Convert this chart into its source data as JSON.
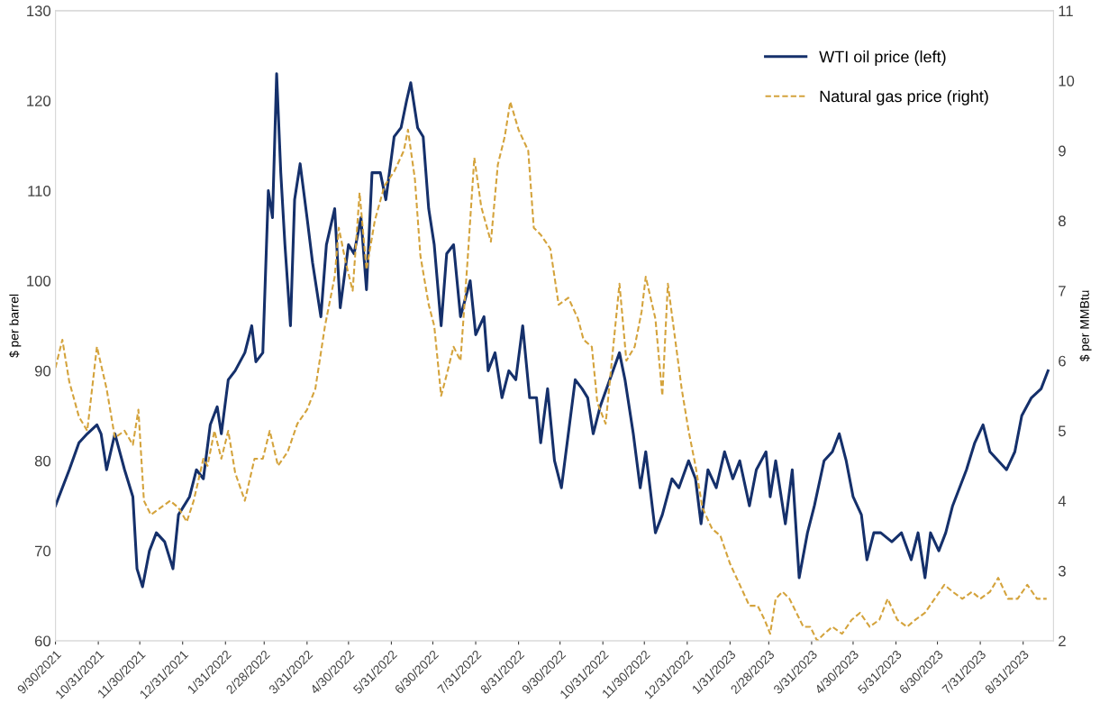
{
  "chart_data": {
    "type": "line",
    "ylabel": "$ per barrel",
    "y2label": "$ per MMBtu",
    "xlim": [
      "2021-09-30",
      "2023-09-22"
    ],
    "xticks": [
      {
        "value": "2021-09-30",
        "label": "9/30/2021"
      },
      {
        "value": "2021-10-31",
        "label": "10/31/2021"
      },
      {
        "value": "2021-11-30",
        "label": "11/30/2021"
      },
      {
        "value": "2021-12-31",
        "label": "12/31/2021"
      },
      {
        "value": "2022-01-31",
        "label": "1/31/2022"
      },
      {
        "value": "2022-02-28",
        "label": "2/28/2022"
      },
      {
        "value": "2022-03-31",
        "label": "3/31/2022"
      },
      {
        "value": "2022-04-30",
        "label": "4/30/2022"
      },
      {
        "value": "2022-05-31",
        "label": "5/31/2022"
      },
      {
        "value": "2022-06-30",
        "label": "6/30/2022"
      },
      {
        "value": "2022-07-31",
        "label": "7/31/2022"
      },
      {
        "value": "2022-08-31",
        "label": "8/31/2022"
      },
      {
        "value": "2022-09-30",
        "label": "9/30/2022"
      },
      {
        "value": "2022-10-31",
        "label": "10/31/2022"
      },
      {
        "value": "2022-11-30",
        "label": "11/30/2022"
      },
      {
        "value": "2022-12-31",
        "label": "12/31/2022"
      },
      {
        "value": "2023-01-31",
        "label": "1/31/2023"
      },
      {
        "value": "2023-02-28",
        "label": "2/28/2023"
      },
      {
        "value": "2023-03-31",
        "label": "3/31/2023"
      },
      {
        "value": "2023-04-30",
        "label": "4/30/2023"
      },
      {
        "value": "2023-05-31",
        "label": "5/31/2023"
      },
      {
        "value": "2023-06-30",
        "label": "6/30/2023"
      },
      {
        "value": "2023-07-31",
        "label": "7/31/2023"
      },
      {
        "value": "2023-08-31",
        "label": "8/31/2023"
      }
    ],
    "ylim": [
      60,
      130
    ],
    "yticks": [
      60,
      70,
      80,
      90,
      100,
      110,
      120,
      130
    ],
    "y2lim": [
      2,
      11
    ],
    "y2ticks": [
      2,
      3,
      4,
      5,
      6,
      7,
      8,
      9,
      10,
      11
    ],
    "grid": false,
    "legend": "top right",
    "series": [
      {
        "name": "WTI oil price (left)",
        "color": "#15306b",
        "line_style": "solid",
        "x": [
          "2021-09-30",
          "2021-10-10",
          "2021-10-17",
          "2021-10-23",
          "2021-10-30",
          "2021-11-02",
          "2021-11-06",
          "2021-11-12",
          "2021-11-19",
          "2021-11-25",
          "2021-11-28",
          "2021-12-02",
          "2021-12-07",
          "2021-12-12",
          "2021-12-18",
          "2021-12-24",
          "2021-12-28",
          "2022-01-05",
          "2022-01-10",
          "2022-01-15",
          "2022-01-20",
          "2022-01-25",
          "2022-01-28",
          "2022-02-02",
          "2022-02-07",
          "2022-02-14",
          "2022-02-19",
          "2022-02-22",
          "2022-02-27",
          "2022-03-03",
          "2022-03-06",
          "2022-03-09",
          "2022-03-12",
          "2022-03-15",
          "2022-03-19",
          "2022-03-22",
          "2022-03-26",
          "2022-03-31",
          "2022-04-04",
          "2022-04-10",
          "2022-04-14",
          "2022-04-20",
          "2022-04-24",
          "2022-04-30",
          "2022-05-04",
          "2022-05-09",
          "2022-05-13",
          "2022-05-17",
          "2022-05-23",
          "2022-05-27",
          "2022-06-02",
          "2022-06-07",
          "2022-06-11",
          "2022-06-14",
          "2022-06-19",
          "2022-06-23",
          "2022-06-27",
          "2022-07-01",
          "2022-07-06",
          "2022-07-10",
          "2022-07-15",
          "2022-07-20",
          "2022-07-27",
          "2022-07-31",
          "2022-08-06",
          "2022-08-09",
          "2022-08-14",
          "2022-08-19",
          "2022-08-24",
          "2022-08-29",
          "2022-09-03",
          "2022-09-08",
          "2022-09-13",
          "2022-09-16",
          "2022-09-21",
          "2022-09-26",
          "2022-10-01",
          "2022-10-06",
          "2022-10-11",
          "2022-10-16",
          "2022-10-20",
          "2022-10-24",
          "2022-10-29",
          "2022-11-05",
          "2022-11-12",
          "2022-11-16",
          "2022-11-22",
          "2022-11-27",
          "2022-12-01",
          "2022-12-08",
          "2022-12-13",
          "2022-12-20",
          "2022-12-25",
          "2023-01-01",
          "2023-01-06",
          "2023-01-10",
          "2023-01-15",
          "2023-01-21",
          "2023-01-27",
          "2023-02-02",
          "2023-02-07",
          "2023-02-14",
          "2023-02-19",
          "2023-02-26",
          "2023-03-01",
          "2023-03-05",
          "2023-03-12",
          "2023-03-17",
          "2023-03-22",
          "2023-03-28",
          "2023-04-02",
          "2023-04-09",
          "2023-04-15",
          "2023-04-20",
          "2023-04-25",
          "2023-04-30",
          "2023-05-06",
          "2023-05-10",
          "2023-05-15",
          "2023-05-20",
          "2023-05-28",
          "2023-06-04",
          "2023-06-11",
          "2023-06-16",
          "2023-06-21",
          "2023-06-25",
          "2023-07-01",
          "2023-07-06",
          "2023-07-11",
          "2023-07-16",
          "2023-07-21",
          "2023-07-27",
          "2023-08-02",
          "2023-08-07",
          "2023-08-13",
          "2023-08-19",
          "2023-08-25",
          "2023-08-30",
          "2023-09-06",
          "2023-09-13",
          "2023-09-18"
        ],
        "values": [
          75,
          79,
          82,
          83,
          84,
          83,
          79,
          83,
          79,
          76,
          68,
          66,
          70,
          72,
          71,
          68,
          74,
          76,
          79,
          78,
          84,
          86,
          83,
          89,
          90,
          92,
          95,
          91,
          92,
          110,
          107,
          123,
          112,
          104,
          95,
          109,
          113,
          107,
          102,
          96,
          104,
          108,
          97,
          104,
          103,
          107,
          99,
          112,
          112,
          109,
          116,
          117,
          120,
          122,
          117,
          116,
          108,
          104,
          95,
          103,
          104,
          96,
          100,
          94,
          96,
          90,
          92,
          87,
          90,
          89,
          95,
          87,
          87,
          82,
          88,
          80,
          77,
          83,
          89,
          88,
          87,
          83,
          86,
          89,
          92,
          89,
          83,
          77,
          81,
          72,
          74,
          78,
          77,
          80,
          78,
          73,
          79,
          77,
          81,
          78,
          80,
          75,
          79,
          81,
          76,
          80,
          73,
          79,
          67,
          72,
          75,
          80,
          81,
          83,
          80,
          76,
          74,
          69,
          72,
          72,
          71,
          72,
          69,
          72,
          67,
          72,
          70,
          72,
          75,
          77,
          79,
          82,
          84,
          81,
          80,
          79,
          81,
          85,
          87,
          88,
          90
        ]
      },
      {
        "name": "Natural gas price (right)",
        "color": "#d4a33c",
        "line_style": "dashed",
        "axis": "y2",
        "x": [
          "2021-09-30",
          "2021-10-05",
          "2021-10-10",
          "2021-10-17",
          "2021-10-23",
          "2021-10-30",
          "2021-11-06",
          "2021-11-12",
          "2021-11-19",
          "2021-11-25",
          "2021-11-29",
          "2021-12-03",
          "2021-12-08",
          "2021-12-15",
          "2021-12-22",
          "2021-12-28",
          "2022-01-03",
          "2022-01-08",
          "2022-01-15",
          "2022-01-18",
          "2022-01-23",
          "2022-01-28",
          "2022-02-02",
          "2022-02-07",
          "2022-02-14",
          "2022-02-21",
          "2022-02-27",
          "2022-03-04",
          "2022-03-10",
          "2022-03-17",
          "2022-03-24",
          "2022-03-31",
          "2022-04-06",
          "2022-04-13",
          "2022-04-20",
          "2022-04-23",
          "2022-04-28",
          "2022-05-03",
          "2022-05-08",
          "2022-05-13",
          "2022-05-19",
          "2022-05-26",
          "2022-06-02",
          "2022-06-09",
          "2022-06-12",
          "2022-06-17",
          "2022-06-21",
          "2022-06-27",
          "2022-07-01",
          "2022-07-06",
          "2022-07-10",
          "2022-07-15",
          "2022-07-20",
          "2022-07-25",
          "2022-07-30",
          "2022-08-04",
          "2022-08-11",
          "2022-08-16",
          "2022-08-21",
          "2022-08-25",
          "2022-08-31",
          "2022-09-07",
          "2022-09-11",
          "2022-09-16",
          "2022-09-23",
          "2022-09-29",
          "2022-10-06",
          "2022-10-13",
          "2022-10-17",
          "2022-10-23",
          "2022-10-27",
          "2022-11-02",
          "2022-11-07",
          "2022-11-12",
          "2022-11-17",
          "2022-11-23",
          "2022-11-28",
          "2022-12-01",
          "2022-12-08",
          "2022-12-13",
          "2022-12-17",
          "2022-12-21",
          "2022-12-27",
          "2023-01-01",
          "2023-01-06",
          "2023-01-11",
          "2023-01-18",
          "2023-01-24",
          "2023-01-31",
          "2023-02-07",
          "2023-02-14",
          "2023-02-20",
          "2023-02-25",
          "2023-03-01",
          "2023-03-05",
          "2023-03-10",
          "2023-03-15",
          "2023-03-20",
          "2023-03-25",
          "2023-03-30",
          "2023-04-04",
          "2023-04-09",
          "2023-04-15",
          "2023-04-22",
          "2023-04-29",
          "2023-05-05",
          "2023-05-12",
          "2023-05-19",
          "2023-05-25",
          "2023-06-01",
          "2023-06-08",
          "2023-06-14",
          "2023-06-21",
          "2023-06-28",
          "2023-07-05",
          "2023-07-11",
          "2023-07-18",
          "2023-07-25",
          "2023-07-31",
          "2023-08-07",
          "2023-08-13",
          "2023-08-20",
          "2023-08-27",
          "2023-09-03",
          "2023-09-10",
          "2023-09-17"
        ],
        "values": [
          5.9,
          6.3,
          5.7,
          5.2,
          5.0,
          6.2,
          5.6,
          4.9,
          5.0,
          4.8,
          5.3,
          4.0,
          3.8,
          3.9,
          4.0,
          3.9,
          3.7,
          4.0,
          4.6,
          4.5,
          5.0,
          4.6,
          5.0,
          4.4,
          4.0,
          4.6,
          4.6,
          5.0,
          4.5,
          4.7,
          5.1,
          5.3,
          5.6,
          6.5,
          7.2,
          7.9,
          7.4,
          7.0,
          8.4,
          7.3,
          8.0,
          8.5,
          8.7,
          9.0,
          9.3,
          8.6,
          7.5,
          6.8,
          6.5,
          5.5,
          5.8,
          6.2,
          6.0,
          7.4,
          8.9,
          8.2,
          7.7,
          8.8,
          9.2,
          9.7,
          9.3,
          9.0,
          7.9,
          7.8,
          7.6,
          6.8,
          6.9,
          6.6,
          6.3,
          6.2,
          5.4,
          5.1,
          6.1,
          7.1,
          6.0,
          6.2,
          6.7,
          7.2,
          6.6,
          5.5,
          7.1,
          6.5,
          5.6,
          5.0,
          4.5,
          3.9,
          3.6,
          3.5,
          3.1,
          2.8,
          2.5,
          2.5,
          2.3,
          2.1,
          2.6,
          2.7,
          2.6,
          2.4,
          2.2,
          2.2,
          2.0,
          2.1,
          2.2,
          2.1,
          2.3,
          2.4,
          2.2,
          2.3,
          2.6,
          2.3,
          2.2,
          2.3,
          2.4,
          2.6,
          2.8,
          2.7,
          2.6,
          2.7,
          2.6,
          2.7,
          2.9,
          2.6,
          2.6,
          2.8,
          2.6,
          2.6
        ]
      }
    ]
  }
}
